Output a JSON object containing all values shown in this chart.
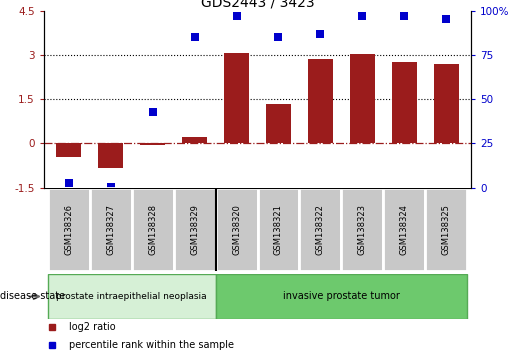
{
  "title": "GDS2443 / 3423",
  "samples": [
    "GSM138326",
    "GSM138327",
    "GSM138328",
    "GSM138329",
    "GSM138320",
    "GSM138321",
    "GSM138322",
    "GSM138323",
    "GSM138324",
    "GSM138325"
  ],
  "log2_ratio": [
    -0.45,
    -0.85,
    -0.05,
    0.22,
    3.08,
    1.35,
    2.85,
    3.02,
    2.75,
    2.68
  ],
  "percentile_rank": [
    2.5,
    0.5,
    43,
    85,
    97,
    85,
    87,
    97,
    97,
    95
  ],
  "bar_color": "#9b1c1c",
  "dot_color": "#0000cc",
  "ylim_left": [
    -1.5,
    4.5
  ],
  "ylim_right": [
    0,
    100
  ],
  "yticks_left": [
    -1.5,
    0,
    1.5,
    3,
    4.5
  ],
  "yticks_right": [
    0,
    25,
    50,
    75,
    100
  ],
  "hlines_dotted": [
    1.5,
    3.0
  ],
  "hline_dashdot": 0.0,
  "group1_count": 4,
  "group1_label": "prostate intraepithelial neoplasia",
  "group2_label": "invasive prostate tumor",
  "group_color1": "#d6f0d6",
  "group_color2": "#6dc96d",
  "disease_state_label": "disease state",
  "legend_red": "log2 ratio",
  "legend_blue": "percentile rank within the sample",
  "bar_width": 0.6,
  "dot_size": 40,
  "box_color": "#c8c8c8",
  "box_edge_color": "white"
}
